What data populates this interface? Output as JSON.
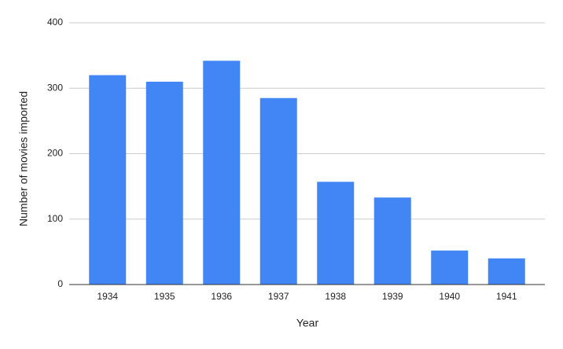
{
  "chart_data": {
    "type": "bar",
    "x_label": "Year",
    "y_label": "Number of movies imported",
    "categories": [
      "1934",
      "1935",
      "1936",
      "1937",
      "1938",
      "1939",
      "1940",
      "1941"
    ],
    "values": [
      320,
      310,
      342,
      285,
      157,
      133,
      52,
      40
    ],
    "color": "#4285f4",
    "ylim": [
      0,
      400
    ],
    "yticks": [
      0,
      100,
      200,
      300,
      400
    ],
    "grid": true
  }
}
